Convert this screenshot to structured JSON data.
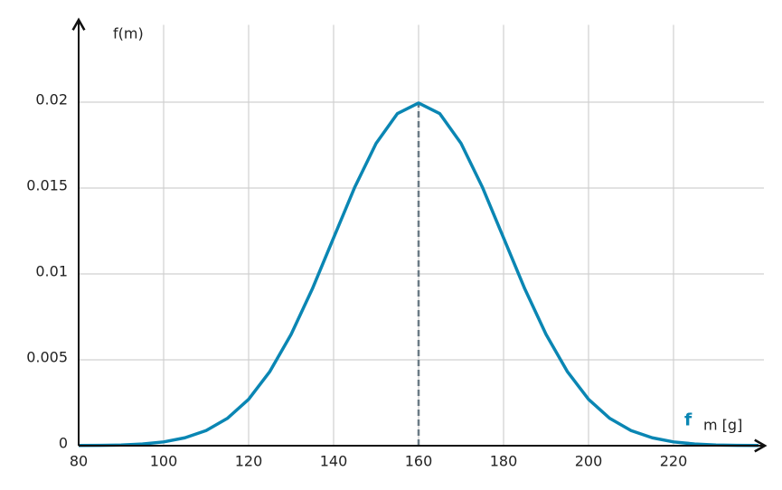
{
  "chart_data": {
    "type": "line",
    "y_label": "f(m)",
    "x_label": "m [g]",
    "x": [
      80,
      85,
      90,
      95,
      100,
      105,
      110,
      115,
      120,
      125,
      130,
      135,
      140,
      145,
      150,
      155,
      160,
      165,
      170,
      175,
      180,
      185,
      190,
      195,
      200,
      205,
      210,
      215,
      220,
      225,
      230,
      235,
      240
    ],
    "series": [
      {
        "name": "f",
        "color": "#0a86b3",
        "values": [
          1e-05,
          2e-05,
          4e-05,
          0.0001,
          0.00022,
          0.00046,
          0.00088,
          0.00159,
          0.0027,
          0.00432,
          0.00648,
          0.00913,
          0.0121,
          0.01506,
          0.0176,
          0.01933,
          0.01995,
          0.01933,
          0.0176,
          0.01506,
          0.0121,
          0.00913,
          0.00648,
          0.00432,
          0.0027,
          0.00159,
          0.00088,
          0.00046,
          0.00022,
          0.0001,
          4e-05,
          2e-05,
          1e-05
        ]
      }
    ],
    "vline_x": 160,
    "xlim": [
      80,
      240
    ],
    "ylim": [
      0,
      0.0245
    ],
    "xticks": [
      80,
      100,
      120,
      140,
      160,
      180,
      200,
      220
    ],
    "yticks": [
      0,
      0.005,
      0.01,
      0.015,
      0.02
    ],
    "grid": true
  }
}
